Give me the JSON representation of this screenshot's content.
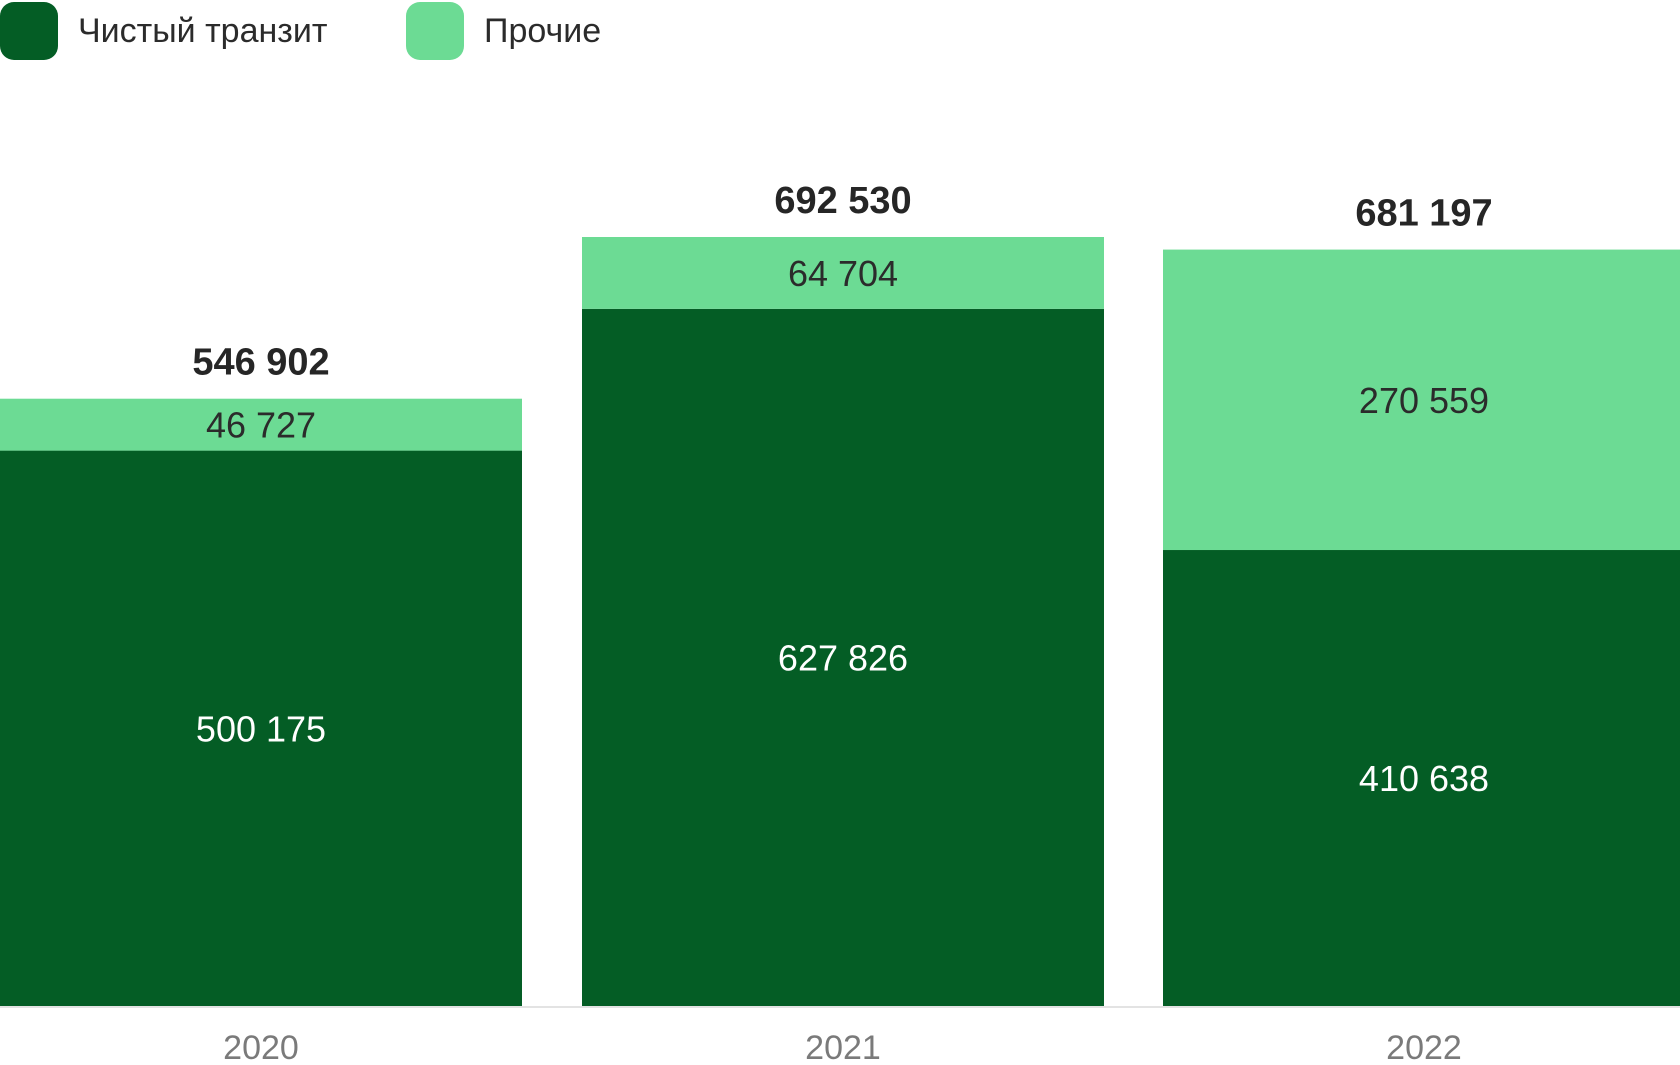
{
  "chart_data": {
    "type": "bar",
    "stacked": true,
    "categories": [
      "2020",
      "2021",
      "2022"
    ],
    "series": [
      {
        "name": "Чистый транзит",
        "color": "#045d25",
        "label_color": "#ffffff",
        "values": [
          500175,
          627826,
          410638
        ],
        "labels": [
          "500 175",
          "627 826",
          "410 638"
        ]
      },
      {
        "name": "Прочие",
        "color": "#6cdb94",
        "label_color": "#2b2b2b",
        "values": [
          46727,
          64704,
          270559
        ],
        "labels": [
          "46 727",
          "64 704",
          "270 559"
        ]
      }
    ],
    "totals": [
      546902,
      692530,
      681197
    ],
    "total_labels": [
      "546 902",
      "692 530",
      "681 197"
    ],
    "ylim": [
      0,
      692530
    ],
    "grid": false,
    "legend_position": "top-left",
    "axis_color": "#e3e3e3"
  }
}
